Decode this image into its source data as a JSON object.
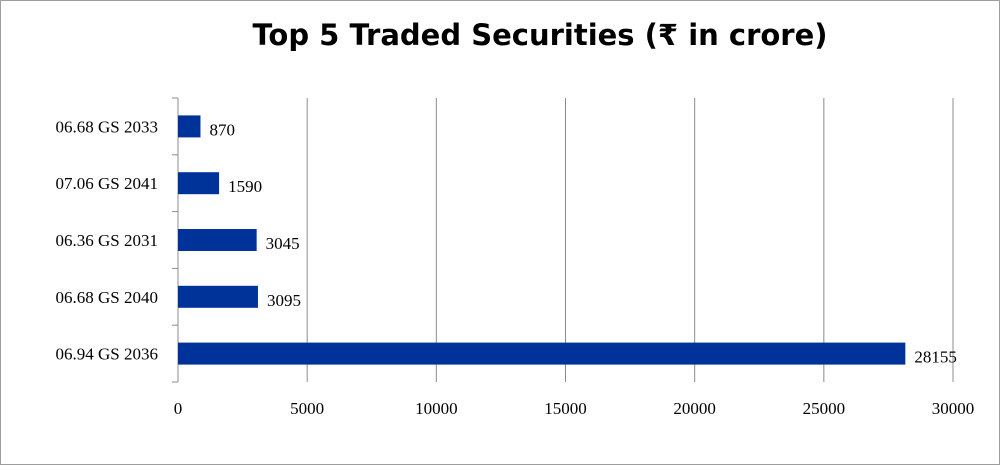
{
  "chart_data": {
    "type": "bar",
    "orientation": "horizontal",
    "title": "Top 5 Traded Securities (₹ in crore)",
    "categories": [
      "06.68 GS 2033",
      "07.06 GS 2041",
      "06.36 GS 2031",
      "06.68 GS 2040",
      "06.94 GS 2036"
    ],
    "values": [
      870,
      1590,
      3045,
      3095,
      28155
    ],
    "data_labels": [
      "870",
      "1590",
      "3045",
      "3095",
      "28155"
    ],
    "xlim": [
      0,
      30000
    ],
    "x_ticks": [
      0,
      5000,
      10000,
      15000,
      20000,
      25000,
      30000
    ],
    "x_tick_labels": [
      "0",
      "5000",
      "10000",
      "15000",
      "20000",
      "25000",
      "30000"
    ],
    "xlabel": "",
    "ylabel": "",
    "grid": "vertical",
    "legend": "none",
    "bar_color": "#003399"
  }
}
